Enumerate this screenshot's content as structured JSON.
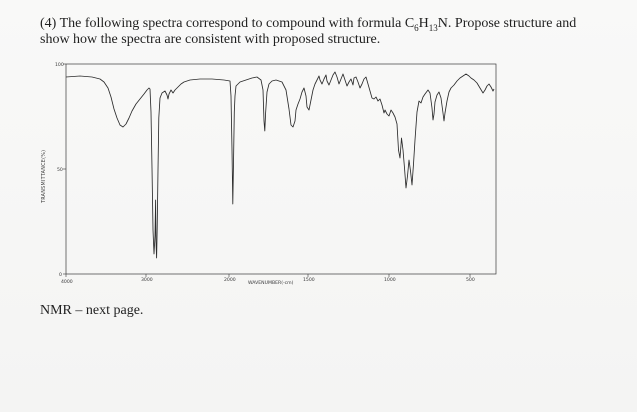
{
  "question": {
    "prefix": "(4) The following spectra correspond to compound with formula C",
    "sub1": "6",
    "mid": "H",
    "sub2": "13",
    "suffix": "N. Propose structure and show how the spectra are consistent with proposed structure."
  },
  "spectrum": {
    "y_axis_label": "TRANSMITTANCE(%)",
    "x_axis_label": "WAVENUMBER(-cm)",
    "y_ticks": [
      "100",
      "50",
      "0"
    ],
    "x_ticks": [
      "4000",
      "3000",
      "2000",
      "1500",
      "1000",
      "500"
    ]
  },
  "footer": {
    "text": "NMR – next page."
  }
}
